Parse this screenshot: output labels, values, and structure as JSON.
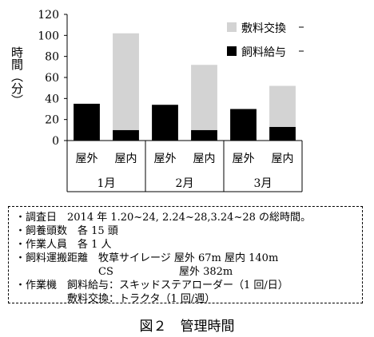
{
  "chart_data": {
    "type": "bar",
    "stacked": true,
    "ylabel": "時間（分）",
    "ylim": [
      0,
      120
    ],
    "yticks": [
      0,
      20,
      40,
      60,
      80,
      100,
      120
    ],
    "groups": [
      "1月",
      "2月",
      "3月"
    ],
    "categories": [
      "屋外",
      "屋内",
      "屋外",
      "屋内",
      "屋外",
      "屋内"
    ],
    "category_group": [
      0,
      0,
      1,
      1,
      2,
      2
    ],
    "series": [
      {
        "name": "飼料給与",
        "color": "#000000",
        "values": [
          35,
          10,
          34,
          10,
          30,
          13
        ]
      },
      {
        "name": "敷料交換",
        "color": "#d3d3d3",
        "values": [
          0,
          92,
          0,
          62,
          0,
          39
        ]
      }
    ],
    "legend_position": "top-right",
    "grid": false
  },
  "notes": [
    "・調査日　2014 年 1.20~24, 2.24~28,3.24~28 の総時間。",
    "・飼養頭数　各 15 頭",
    "・作業人員　各 1 人",
    "・飼料運搬距離　牧草サイレージ 屋外 67m 屋内 140m",
    "　　　　　　　　CS　　　　　　 屋外 382m",
    "・作業機　飼料給与：スキッドステアローダー（1 回/日）",
    "　　　　　敷料交換：トラクタ（1 回/週）"
  ],
  "caption": "図２　管理時間"
}
